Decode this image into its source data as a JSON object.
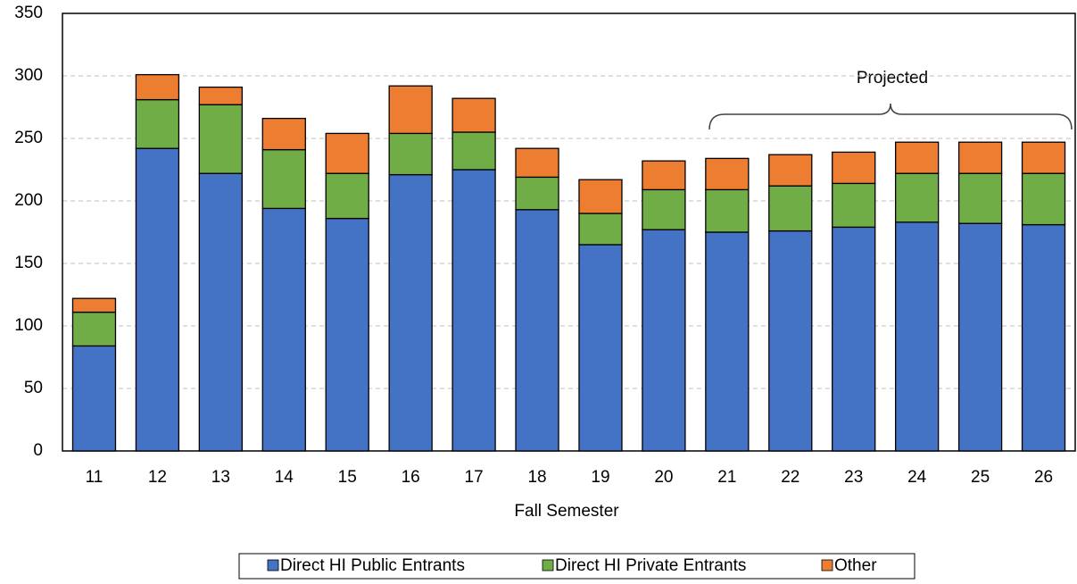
{
  "chart_data": {
    "type": "stacked_bar",
    "xlabel": "Fall Semester",
    "annotation": "Projected",
    "categories": [
      "11",
      "12",
      "13",
      "14",
      "15",
      "16",
      "17",
      "18",
      "19",
      "20",
      "21",
      "22",
      "23",
      "24",
      "25",
      "26"
    ],
    "series": [
      {
        "name": "Direct HI Public Entrants",
        "color": "#4472c4",
        "values": [
          84,
          242,
          222,
          194,
          186,
          221,
          225,
          193,
          165,
          177,
          175,
          176,
          179,
          183,
          182,
          181
        ]
      },
      {
        "name": "Direct HI Private Entrants",
        "color": "#70ad47",
        "values": [
          27,
          39,
          55,
          47,
          36,
          33,
          30,
          26,
          25,
          32,
          34,
          36,
          35,
          39,
          40,
          41
        ]
      },
      {
        "name": "Other",
        "color": "#ed7d31",
        "values": [
          11,
          20,
          14,
          25,
          32,
          38,
          27,
          23,
          27,
          23,
          25,
          25,
          25,
          25,
          25,
          25
        ]
      }
    ],
    "ylim": [
      0,
      350
    ],
    "yticks": [
      0,
      50,
      100,
      150,
      200,
      250,
      300,
      350
    ],
    "grid": true
  }
}
